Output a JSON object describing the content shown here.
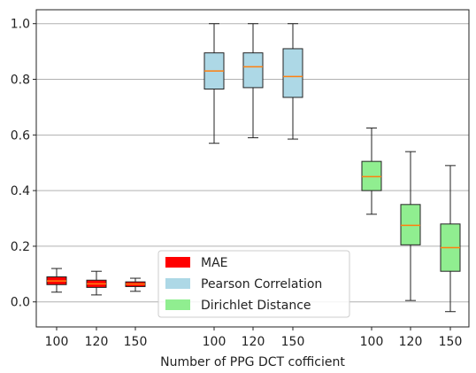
{
  "chart_data": {
    "type": "box",
    "title": "",
    "xlabel": "Number of PPG DCT cofficient",
    "ylabel": "",
    "ylim": [
      -0.09,
      1.05
    ],
    "yticks": [
      0.0,
      0.2,
      0.4,
      0.6,
      0.8,
      1.0
    ],
    "ytick_labels": [
      "0.0",
      "0.2",
      "0.4",
      "0.6",
      "0.8",
      "1.0"
    ],
    "grid": "horizontal",
    "legend_position": "lower-center",
    "series": [
      {
        "name": "MAE",
        "color": "#ff0000",
        "boxes": [
          {
            "label": "100",
            "whisker_low": 0.035,
            "q1": 0.062,
            "median": 0.075,
            "q3": 0.09,
            "whisker_high": 0.12
          },
          {
            "label": "120",
            "whisker_low": 0.025,
            "q1": 0.052,
            "median": 0.065,
            "q3": 0.078,
            "whisker_high": 0.11
          },
          {
            "label": "150",
            "whisker_low": 0.038,
            "q1": 0.055,
            "median": 0.064,
            "q3": 0.072,
            "whisker_high": 0.085
          }
        ]
      },
      {
        "name": "Pearson Correlation",
        "color": "#add8e6",
        "boxes": [
          {
            "label": "100",
            "whisker_low": 0.57,
            "q1": 0.765,
            "median": 0.83,
            "q3": 0.895,
            "whisker_high": 1.0
          },
          {
            "label": "120",
            "whisker_low": 0.59,
            "q1": 0.77,
            "median": 0.845,
            "q3": 0.895,
            "whisker_high": 1.0
          },
          {
            "label": "150",
            "whisker_low": 0.585,
            "q1": 0.735,
            "median": 0.81,
            "q3": 0.91,
            "whisker_high": 1.0
          }
        ]
      },
      {
        "name": "Dirichlet Distance",
        "color": "#90ee90",
        "boxes": [
          {
            "label": "100",
            "whisker_low": 0.315,
            "q1": 0.4,
            "median": 0.45,
            "q3": 0.505,
            "whisker_high": 0.625
          },
          {
            "label": "120",
            "whisker_low": 0.005,
            "q1": 0.205,
            "median": 0.275,
            "q3": 0.35,
            "whisker_high": 0.54
          },
          {
            "label": "150",
            "whisker_low": -0.035,
            "q1": 0.11,
            "median": 0.195,
            "q3": 0.28,
            "whisker_high": 0.49
          }
        ]
      }
    ],
    "median_color": "#ff7f0e"
  }
}
